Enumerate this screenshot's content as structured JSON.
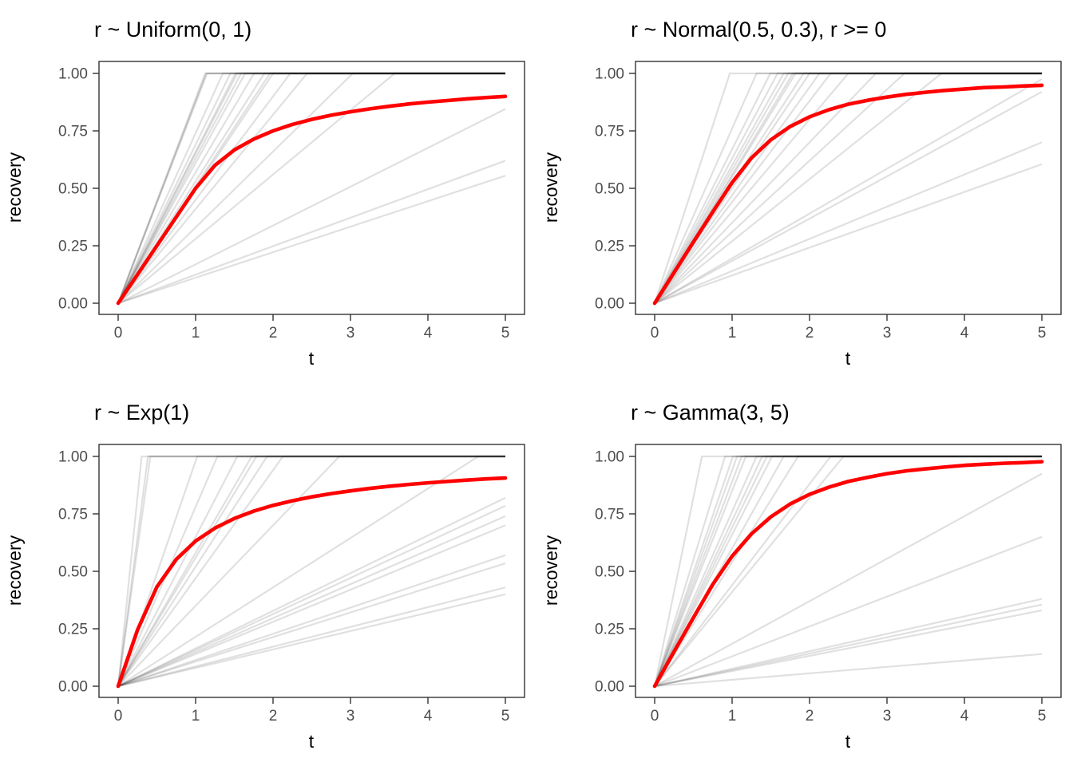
{
  "figure": {
    "background": "#FFFFFF",
    "layout": "2x2 grid of recovery-vs-time plots, each showing 20 semi-transparent gray linear recovery trajectories recovery=min(r*t,1) with random rate r, plus a red expected-recovery curve"
  },
  "style": {
    "red_line_color": "#FF0000",
    "gray_line_color": "#000000",
    "gray_line_opacity": 0.12,
    "gray_line_width": 2.2,
    "red_line_width": 4.6,
    "panel_border_color": "#333333",
    "tick_color": "#333333",
    "tick_label_color": "#4D4D4D",
    "title_color": "#000000"
  },
  "axes": {
    "x": {
      "label": "t",
      "ticks": [
        0,
        1,
        2,
        3,
        4,
        5
      ],
      "tick_labels": [
        "0",
        "1",
        "2",
        "3",
        "4",
        "5"
      ],
      "range": [
        0,
        5
      ]
    },
    "y": {
      "label": "recovery",
      "tick_values": [
        0,
        0.25,
        0.5,
        0.75,
        1
      ],
      "tick_labels": [
        "0.00",
        "0.25",
        "0.50",
        "0.75",
        "1.00"
      ],
      "range": [
        0,
        1
      ]
    }
  },
  "chart_data": [
    {
      "type": "line",
      "title": "r ~ Uniform(0, 1)",
      "xlabel": "t",
      "ylabel": "recovery",
      "xlim": [
        0,
        5
      ],
      "ylim": [
        0,
        1
      ],
      "grid": false,
      "legend": "none",
      "distribution": "Uniform(0, 1)",
      "trajectory_model": "recovery(t) = min(r * t, 1)",
      "gray_slopes": [
        0.111,
        0.124,
        0.169,
        0.28,
        0.33,
        0.41,
        0.45,
        0.5,
        0.51,
        0.53,
        0.57,
        0.61,
        0.63,
        0.65,
        0.66,
        0.69,
        0.74,
        0.87,
        0.88,
        0.89
      ],
      "mean_curve": {
        "t": [
          0,
          0.25,
          0.5,
          0.75,
          1,
          1.25,
          1.5,
          1.75,
          2,
          2.25,
          2.5,
          2.75,
          3,
          3.25,
          3.5,
          3.75,
          4,
          4.25,
          4.5,
          4.75,
          5
        ],
        "recovery": [
          0,
          0.125,
          0.25,
          0.375,
          0.5,
          0.6,
          0.667,
          0.714,
          0.75,
          0.778,
          0.8,
          0.818,
          0.833,
          0.846,
          0.857,
          0.867,
          0.875,
          0.882,
          0.889,
          0.895,
          0.9
        ]
      }
    },
    {
      "type": "line",
      "title": "r ~ Normal(0.5, 0.3), r >= 0",
      "xlabel": "t",
      "ylabel": "recovery",
      "xlim": [
        0,
        5
      ],
      "ylim": [
        0,
        1
      ],
      "grid": false,
      "legend": "none",
      "distribution": "Normal(0.5, 0.3) truncated at 0",
      "trajectory_model": "recovery(t) = min(r * t, 1)",
      "gray_slopes": [
        0.121,
        0.14,
        0.184,
        0.195,
        0.27,
        0.31,
        0.35,
        0.4,
        0.44,
        0.47,
        0.5,
        0.52,
        0.55,
        0.56,
        0.58,
        0.6,
        0.63,
        0.67,
        0.76,
        1.03
      ],
      "mean_curve": {
        "t": [
          0,
          0.25,
          0.5,
          0.75,
          1,
          1.25,
          1.5,
          1.75,
          2,
          2.25,
          2.5,
          2.75,
          3,
          3.25,
          3.5,
          3.75,
          4,
          4.25,
          4.5,
          4.75,
          5
        ],
        "recovery": [
          0,
          0.133,
          0.266,
          0.397,
          0.525,
          0.632,
          0.711,
          0.769,
          0.811,
          0.842,
          0.866,
          0.883,
          0.897,
          0.909,
          0.918,
          0.926,
          0.932,
          0.938,
          0.941,
          0.945,
          0.948
        ]
      }
    },
    {
      "type": "line",
      "title": "r ~ Exp(1)",
      "xlabel": "t",
      "ylabel": "recovery",
      "xlim": [
        0,
        5
      ],
      "ylim": [
        0,
        1
      ],
      "grid": false,
      "legend": "none",
      "distribution": "Exponential(1)",
      "trajectory_model": "recovery(t) = min(r * t, 1)",
      "gray_slopes": [
        0.08,
        0.086,
        0.107,
        0.114,
        0.14,
        0.148,
        0.157,
        0.164,
        0.215,
        0.35,
        0.47,
        0.52,
        0.56,
        0.58,
        0.65,
        0.78,
        0.98,
        2.4,
        2.6,
        3.3
      ],
      "mean_curve": {
        "t": [
          0,
          0.25,
          0.5,
          0.75,
          1,
          1.25,
          1.5,
          1.75,
          2,
          2.25,
          2.5,
          2.75,
          3,
          3.25,
          3.5,
          3.75,
          4,
          4.25,
          4.5,
          4.75,
          5
        ],
        "recovery": [
          0,
          0.245,
          0.432,
          0.552,
          0.632,
          0.688,
          0.73,
          0.762,
          0.787,
          0.807,
          0.824,
          0.838,
          0.85,
          0.861,
          0.87,
          0.878,
          0.885,
          0.891,
          0.897,
          0.902,
          0.906
        ]
      }
    },
    {
      "type": "line",
      "title": "r ~ Gamma(3, 5)",
      "xlabel": "t",
      "ylabel": "recovery",
      "xlim": [
        0,
        5
      ],
      "ylim": [
        0,
        1
      ],
      "grid": false,
      "legend": "none",
      "distribution": "Gamma(shape 3, rate 5)",
      "trajectory_model": "recovery(t) = min(r * t, 1)",
      "gray_slopes": [
        0.028,
        0.066,
        0.071,
        0.076,
        0.13,
        0.185,
        0.41,
        0.44,
        0.54,
        0.6,
        0.66,
        0.69,
        0.72,
        0.76,
        0.85,
        0.89,
        0.94,
        0.99,
        1.1,
        1.64
      ],
      "mean_curve": {
        "t": [
          0,
          0.25,
          0.5,
          0.75,
          1,
          1.25,
          1.5,
          1.75,
          2,
          2.25,
          2.5,
          2.75,
          3,
          3.25,
          3.5,
          3.75,
          4,
          4.25,
          4.5,
          4.75,
          5
        ],
        "recovery": [
          0,
          0.15,
          0.298,
          0.443,
          0.566,
          0.663,
          0.737,
          0.793,
          0.835,
          0.866,
          0.891,
          0.909,
          0.925,
          0.937,
          0.946,
          0.954,
          0.961,
          0.966,
          0.97,
          0.973,
          0.977
        ]
      }
    }
  ]
}
